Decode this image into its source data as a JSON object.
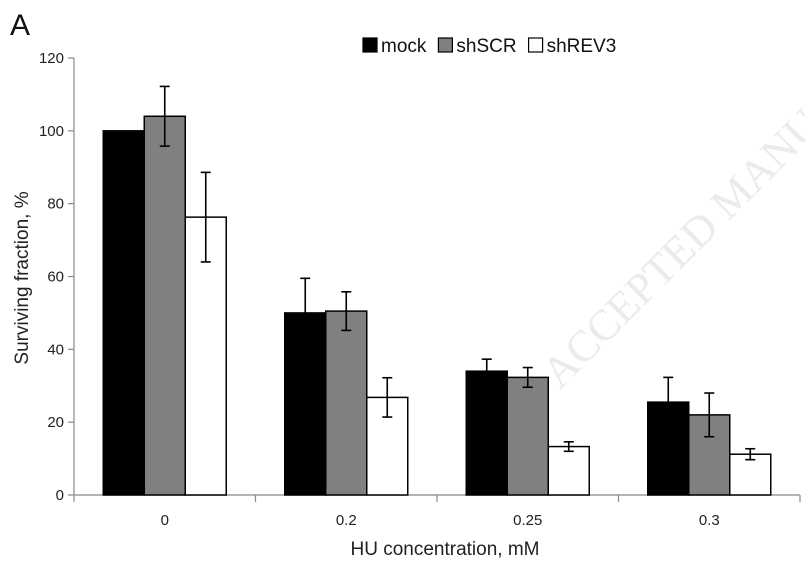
{
  "panel_label": "A",
  "watermark": "ACCEPTED MANUSCRIPT",
  "colors": {
    "mock": "#000000",
    "shSCR": "#808080",
    "shREV3": "#ffffff",
    "axis": "#888888"
  },
  "chart_data": {
    "type": "bar",
    "title": "",
    "xlabel": "HU concentration, mM",
    "ylabel": "Surviving fraction, %",
    "categories": [
      "0",
      "0.2",
      "0.25",
      "0.3"
    ],
    "ylim": [
      0,
      120
    ],
    "yticks": [
      0,
      20,
      40,
      60,
      80,
      100,
      120
    ],
    "grid": false,
    "legend_position": "top-center",
    "series": [
      {
        "name": "mock",
        "values": [
          100,
          50,
          34,
          25.5
        ],
        "errors": [
          0,
          9.5,
          3.3,
          6.8
        ]
      },
      {
        "name": "shSCR",
        "values": [
          104,
          50.5,
          32.3,
          22
        ],
        "errors": [
          8.2,
          5.3,
          2.7,
          6
        ]
      },
      {
        "name": "shREV3",
        "values": [
          76.3,
          26.8,
          13.3,
          11.2
        ],
        "errors": [
          12.3,
          5.4,
          1.3,
          1.5
        ]
      }
    ]
  }
}
